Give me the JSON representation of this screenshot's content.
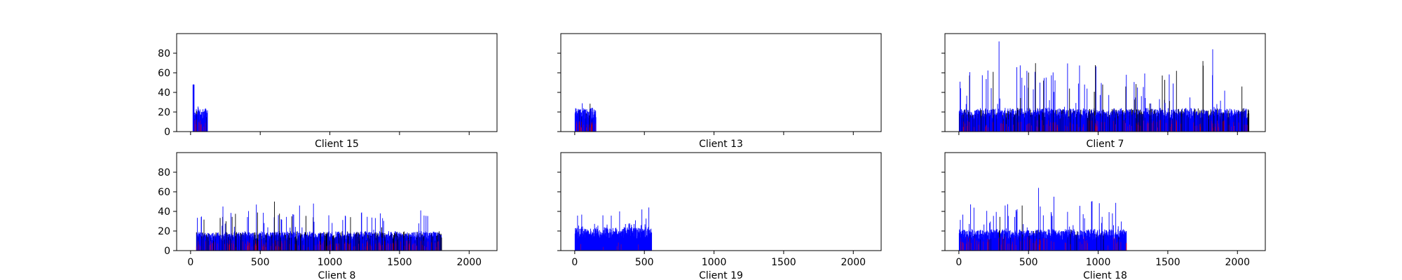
{
  "colors": {
    "primary": "#0000ff",
    "secondary": "#ff0000",
    "dense": "#000000",
    "axis": "#000000"
  },
  "chart_data": [
    {
      "type": "bar",
      "title": "Client 15",
      "xlim": [
        -100,
        2200
      ],
      "ylim": [
        0,
        100
      ],
      "yticks": [
        0,
        20,
        40,
        60,
        80
      ],
      "xticks": [
        0,
        500,
        1000,
        1500,
        2000
      ],
      "show_xticklabels": false,
      "show_yticklabels": true,
      "x_extent": [
        15,
        120
      ],
      "typical": 22,
      "max": 48,
      "red_level": 12,
      "red_share": 0.15,
      "dense_share": 0.05,
      "notes": "short burst of bars near x=0"
    },
    {
      "type": "bar",
      "title": "Client 13",
      "xlim": [
        -100,
        2200
      ],
      "ylim": [
        0,
        100
      ],
      "yticks": [
        0,
        20,
        40,
        60,
        80
      ],
      "xticks": [
        0,
        500,
        1000,
        1500,
        2000
      ],
      "show_xticklabels": false,
      "show_yticklabels": false,
      "x_extent": [
        0,
        150
      ],
      "typical": 22,
      "max": 32,
      "red_level": 10,
      "red_share": 0.2,
      "dense_share": 0.05
    },
    {
      "type": "bar",
      "title": "Client 7",
      "xlim": [
        -100,
        2200
      ],
      "ylim": [
        0,
        100
      ],
      "yticks": [
        0,
        20,
        40,
        60,
        80
      ],
      "xticks": [
        0,
        500,
        1000,
        1500,
        2000
      ],
      "show_xticklabels": false,
      "show_yticklabels": false,
      "x_extent": [
        0,
        2080
      ],
      "typical": 22,
      "max": 92,
      "red_level": 10,
      "red_share": 0.12,
      "dense_share": 0.2,
      "spikes": [
        [
          285,
          92
        ],
        [
          1820,
          84
        ],
        [
          1750,
          72
        ],
        [
          1560,
          62
        ],
        [
          1200,
          58
        ],
        [
          450,
          55
        ],
        [
          580,
          50
        ],
        [
          1030,
          48
        ],
        [
          900,
          48
        ],
        [
          1280,
          45
        ],
        [
          2030,
          46
        ]
      ]
    },
    {
      "type": "bar",
      "title": "Client 8",
      "xlim": [
        -100,
        2200
      ],
      "ylim": [
        0,
        100
      ],
      "yticks": [
        0,
        20,
        40,
        60,
        80
      ],
      "xticks": [
        0,
        500,
        1000,
        1500,
        2000
      ],
      "show_xticklabels": true,
      "show_yticklabels": true,
      "x_extent": [
        40,
        1800
      ],
      "typical": 18,
      "max": 50,
      "red_level": 9,
      "red_share": 0.15,
      "dense_share": 0.25,
      "spikes": [
        [
          600,
          50
        ],
        [
          880,
          48
        ],
        [
          470,
          47
        ],
        [
          780,
          46
        ],
        [
          1650,
          41
        ],
        [
          1360,
          38
        ],
        [
          230,
          45
        ],
        [
          1110,
          35
        ]
      ]
    },
    {
      "type": "bar",
      "title": "Client 19",
      "xlim": [
        -100,
        2200
      ],
      "ylim": [
        0,
        100
      ],
      "yticks": [
        0,
        20,
        40,
        60,
        80
      ],
      "xticks": [
        0,
        500,
        1000,
        1500,
        2000
      ],
      "show_xticklabels": true,
      "show_yticklabels": false,
      "x_extent": [
        0,
        550
      ],
      "typical": 22,
      "max": 44,
      "red_level": 8,
      "red_share": 0.02,
      "dense_share": 0.0,
      "spikes": [
        [
          530,
          44
        ],
        [
          480,
          42
        ],
        [
          320,
          40
        ],
        [
          200,
          36
        ]
      ]
    },
    {
      "type": "bar",
      "title": "Client 18",
      "xlim": [
        -100,
        2200
      ],
      "ylim": [
        0,
        100
      ],
      "yticks": [
        0,
        20,
        40,
        60,
        80
      ],
      "xticks": [
        0,
        500,
        1000,
        1500,
        2000
      ],
      "show_xticklabels": true,
      "show_yticklabels": false,
      "x_extent": [
        0,
        1200
      ],
      "typical": 20,
      "max": 64,
      "red_level": 12,
      "red_share": 0.12,
      "dense_share": 0.05,
      "spikes": [
        [
          570,
          64
        ],
        [
          680,
          55
        ],
        [
          950,
          50
        ],
        [
          330,
          46
        ],
        [
          410,
          40
        ],
        [
          1100,
          38
        ]
      ]
    }
  ]
}
